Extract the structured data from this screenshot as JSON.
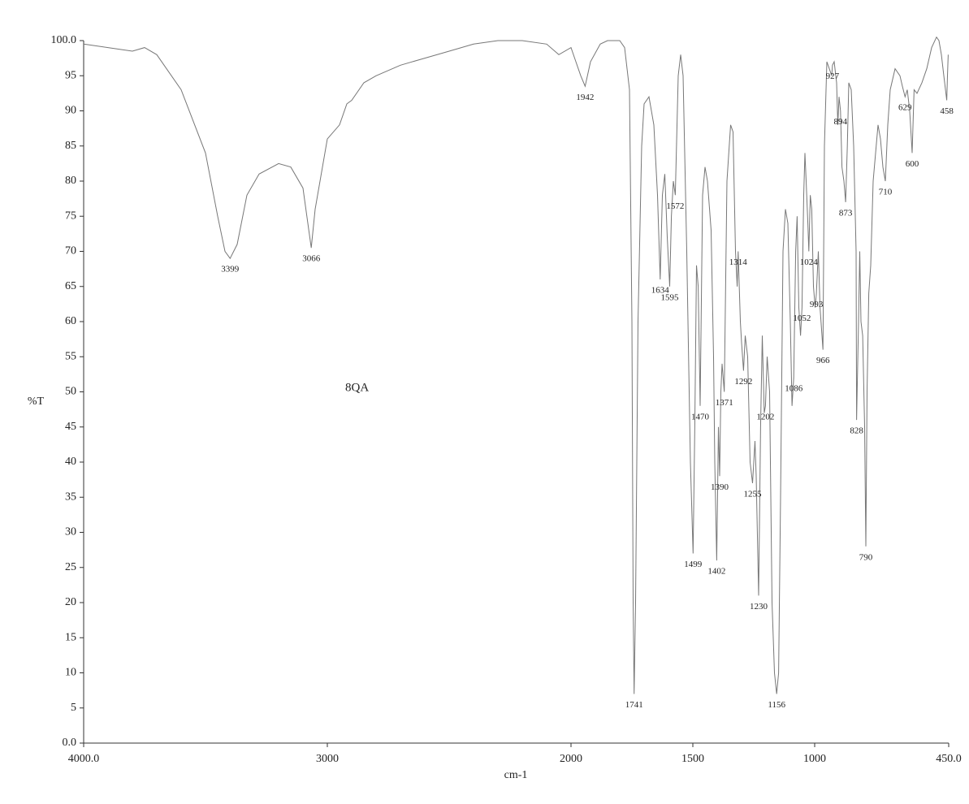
{
  "chart_data": {
    "type": "line",
    "annotation": "8QA",
    "y_label": "%T",
    "x_label": "cm-1",
    "xlim": [
      4000,
      450
    ],
    "ylim": [
      0,
      100
    ],
    "xticks": [
      {
        "value": 4000,
        "label": "4000.0"
      },
      3000,
      2000,
      1500,
      1000,
      {
        "value": 450,
        "label": "450.0"
      }
    ],
    "yticks": [
      {
        "value": 0,
        "label": "0.0"
      },
      5,
      10,
      15,
      20,
      25,
      30,
      35,
      40,
      45,
      50,
      55,
      60,
      65,
      70,
      75,
      80,
      85,
      90,
      95,
      {
        "value": 100,
        "label": "100.0"
      }
    ],
    "color": "#777777",
    "x": [
      4000,
      3900,
      3800,
      3750,
      3700,
      3600,
      3500,
      3450,
      3420,
      3399,
      3370,
      3330,
      3280,
      3200,
      3150,
      3100,
      3080,
      3066,
      3050,
      3020,
      3000,
      2950,
      2920,
      2900,
      2850,
      2800,
      2700,
      2600,
      2500,
      2400,
      2300,
      2200,
      2100,
      2050,
      2000,
      1980,
      1960,
      1942,
      1920,
      1880,
      1850,
      1800,
      1780,
      1760,
      1750,
      1745,
      1741,
      1735,
      1725,
      1710,
      1700,
      1680,
      1660,
      1645,
      1634,
      1625,
      1615,
      1605,
      1595,
      1588,
      1580,
      1572,
      1560,
      1550,
      1540,
      1525,
      1510,
      1499,
      1492,
      1485,
      1478,
      1470,
      1460,
      1450,
      1440,
      1425,
      1415,
      1410,
      1402,
      1395,
      1390,
      1385,
      1380,
      1371,
      1360,
      1345,
      1335,
      1325,
      1318,
      1314,
      1305,
      1300,
      1292,
      1285,
      1275,
      1265,
      1255,
      1245,
      1240,
      1230,
      1222,
      1215,
      1207,
      1202,
      1195,
      1185,
      1175,
      1165,
      1156,
      1148,
      1140,
      1130,
      1120,
      1110,
      1100,
      1093,
      1086,
      1078,
      1072,
      1065,
      1058,
      1052,
      1045,
      1040,
      1035,
      1028,
      1024,
      1018,
      1012,
      1005,
      998,
      993,
      985,
      978,
      970,
      966,
      960,
      950,
      940,
      930,
      927,
      920,
      910,
      905,
      900,
      894,
      888,
      880,
      873,
      866,
      860,
      850,
      840,
      830,
      828,
      820,
      815,
      810,
      803,
      795,
      790,
      785,
      778,
      770,
      760,
      740,
      730,
      720,
      710,
      700,
      690,
      670,
      650,
      640,
      629,
      620,
      610,
      600,
      592,
      580,
      560,
      540,
      520,
      500,
      490,
      480,
      470,
      458,
      455,
      452
    ],
    "values": [
      99.5,
      99,
      98.5,
      99,
      98,
      93,
      84,
      75,
      70,
      69,
      71,
      78,
      81,
      82.5,
      82,
      79,
      74,
      70.5,
      76,
      82,
      86,
      88,
      91,
      91.5,
      94,
      95,
      96.5,
      97.5,
      98.5,
      99.5,
      100,
      100,
      99.5,
      98,
      99,
      97,
      95,
      93.5,
      97,
      99.5,
      100,
      100,
      99,
      93,
      60,
      20,
      7,
      20,
      60,
      85,
      91,
      92,
      88,
      78,
      66,
      78,
      81,
      72,
      65,
      75,
      80,
      78,
      95,
      98,
      95,
      70,
      40,
      27,
      45,
      68,
      65,
      48,
      78,
      82,
      80,
      73,
      55,
      40,
      26,
      45,
      38,
      50,
      54,
      50,
      80,
      88,
      87,
      70,
      65,
      70,
      60,
      57,
      53,
      58,
      55,
      40,
      37,
      43,
      38,
      21,
      45,
      58,
      47,
      48,
      55,
      50,
      20,
      10,
      7,
      10,
      35,
      70,
      76,
      74,
      60,
      48,
      52,
      70,
      75,
      62,
      58,
      62,
      78,
      84,
      80,
      74,
      70,
      78,
      76,
      65,
      62,
      64,
      70,
      62,
      58,
      56,
      85,
      97,
      96,
      95,
      96.5,
      97,
      94,
      88,
      92,
      90,
      82,
      80,
      77,
      85,
      94,
      93,
      85,
      70,
      46,
      60,
      70,
      60,
      58,
      45,
      28,
      50,
      64,
      68,
      80,
      88,
      86,
      82,
      80,
      88,
      93,
      96,
      95,
      93.5,
      92,
      93,
      90,
      84,
      93,
      92.5,
      94,
      96,
      99,
      100.5,
      100,
      98,
      95,
      91.5,
      95,
      98
    ],
    "peak_labels": [
      3399,
      3066,
      1942,
      1741,
      1634,
      1595,
      1572,
      1499,
      1470,
      1402,
      1390,
      1371,
      1314,
      1292,
      1255,
      1230,
      1202,
      1156,
      1086,
      1052,
      1024,
      993,
      966,
      927,
      894,
      873,
      828,
      790,
      710,
      629,
      600,
      458
    ]
  }
}
